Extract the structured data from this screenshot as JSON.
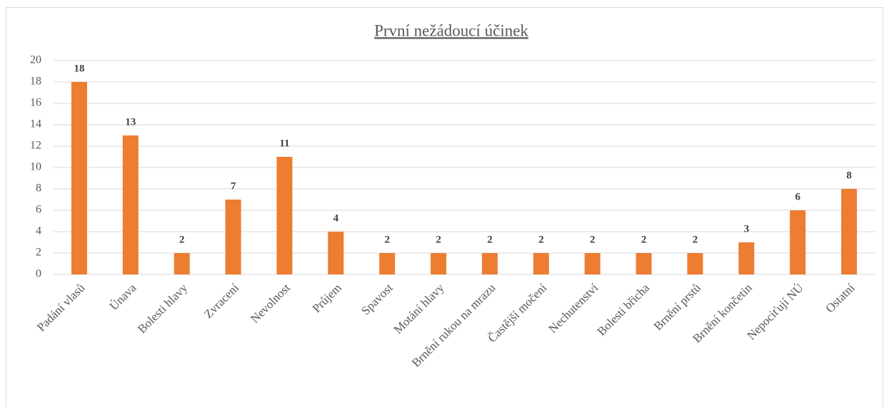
{
  "chart_data": {
    "type": "bar",
    "title": "První nežádoucí účinek",
    "categories": [
      "Padání vlasů",
      "Únava",
      "Bolesti hlavy",
      "Zvracení",
      "Nevolnost",
      "Průjem",
      "Spavost",
      "Motání hlavy",
      "Brnění rukou na mrazu",
      "Častější močení",
      "Nechutenství",
      "Bolesti břicha",
      "Brnění prstů",
      "Brnění končetin",
      "Nepociťují NÚ",
      "Ostatní"
    ],
    "values": [
      18,
      13,
      2,
      7,
      11,
      4,
      2,
      2,
      2,
      2,
      2,
      2,
      2,
      3,
      6,
      8
    ],
    "color": "#ed7d31",
    "ylim": [
      0,
      20
    ],
    "yticks": [
      0,
      2,
      4,
      6,
      8,
      10,
      12,
      14,
      16,
      18,
      20
    ],
    "grid": true
  }
}
